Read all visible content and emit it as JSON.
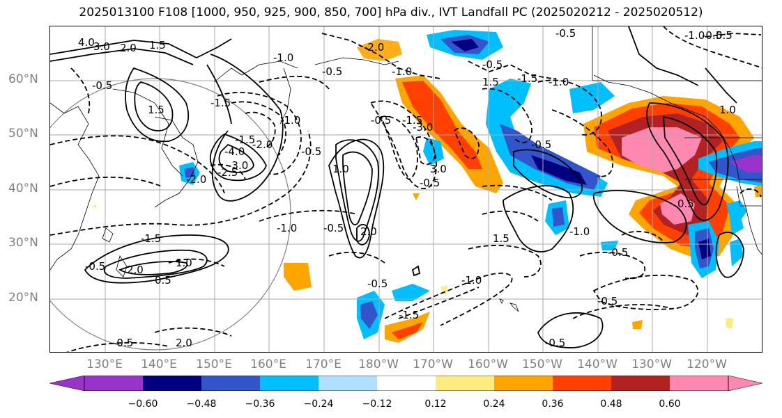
{
  "title": "2025013100 F108 [1000, 950, 925, 900, 850, 700] hPa div., IVT Landfall PC (2025020212 - 2025020512)",
  "lat_labels": [
    "60°N",
    "50°N",
    "40°N",
    "30°N",
    "20°N"
  ],
  "lon_labels": [
    "130°E",
    "140°E",
    "150°E",
    "160°E",
    "170°E",
    "180°W",
    "170°W",
    "160°W",
    "150°W",
    "140°W",
    "130°W",
    "120°W"
  ],
  "colorbar": {
    "ticks": [
      "−0.60",
      "−0.48",
      "−0.36",
      "−0.24",
      "−0.12",
      "0.12",
      "0.24",
      "0.36",
      "0.48",
      "0.60"
    ],
    "colors": [
      "#9933cc",
      "#000080",
      "#3355cc",
      "#00bfff",
      "#b0e0ff",
      "#ffffff",
      "#ffec80",
      "#ffa500",
      "#ff4000",
      "#b22222",
      "#ff88b0"
    ]
  },
  "contour_labels": [
    "4.0",
    "3.0",
    "2.0",
    "1.5",
    "-0.5",
    "-1.5",
    "1.5",
    "-1.5",
    "-2.0",
    "-1.0",
    "-0.5",
    "-4.0",
    "-3.0",
    "-2.5",
    "-2.0",
    "-1.0",
    "-0.5",
    "-1.5",
    "1.0",
    "2.0",
    "-1.0",
    "-0.5",
    "-2.0",
    "-1.0",
    "-1.5",
    "-3.0",
    "3.0",
    "-0.5",
    "-0.5",
    "1.5",
    "-0.5",
    "1.0",
    "2.0",
    "-0.5",
    "-1.5",
    "-1.0",
    "-1.0",
    "-0.5",
    "0.5",
    "-0.5",
    "1.5",
    "-1.0",
    "-0.5",
    "-0.5",
    "-0.5",
    "2.0",
    "1.0",
    "0.5",
    "-0.5",
    "-0.5",
    "-1.5",
    "-1.0",
    "-0.5",
    "0.5",
    "-0.5",
    "2.0",
    "-1.0",
    "-0.5",
    "1.0",
    "-1.0",
    "-0.5",
    "1.5",
    "0.5",
    "1.0",
    "2.0",
    "-0.5",
    "-0.5",
    "-0.5",
    "1.0",
    "1.5",
    "0.5",
    "-0.5",
    "1.0",
    "-0.5",
    "0.5"
  ]
}
